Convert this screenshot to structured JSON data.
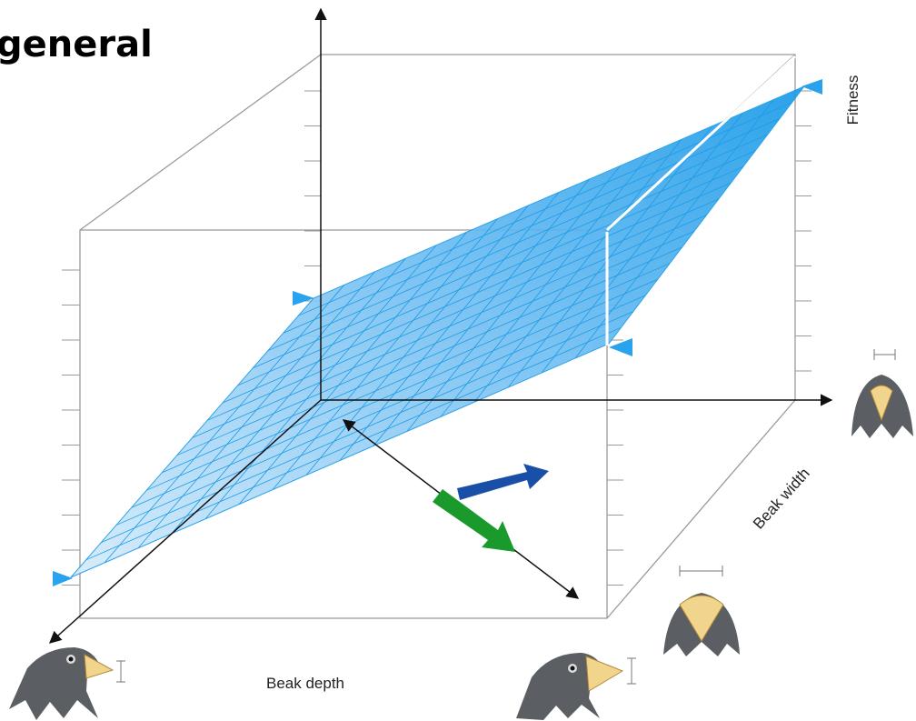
{
  "title": "general",
  "axes": {
    "fitness": "Fitness",
    "beak_width": "Beak width",
    "beak_depth": "Beak depth"
  }
}
